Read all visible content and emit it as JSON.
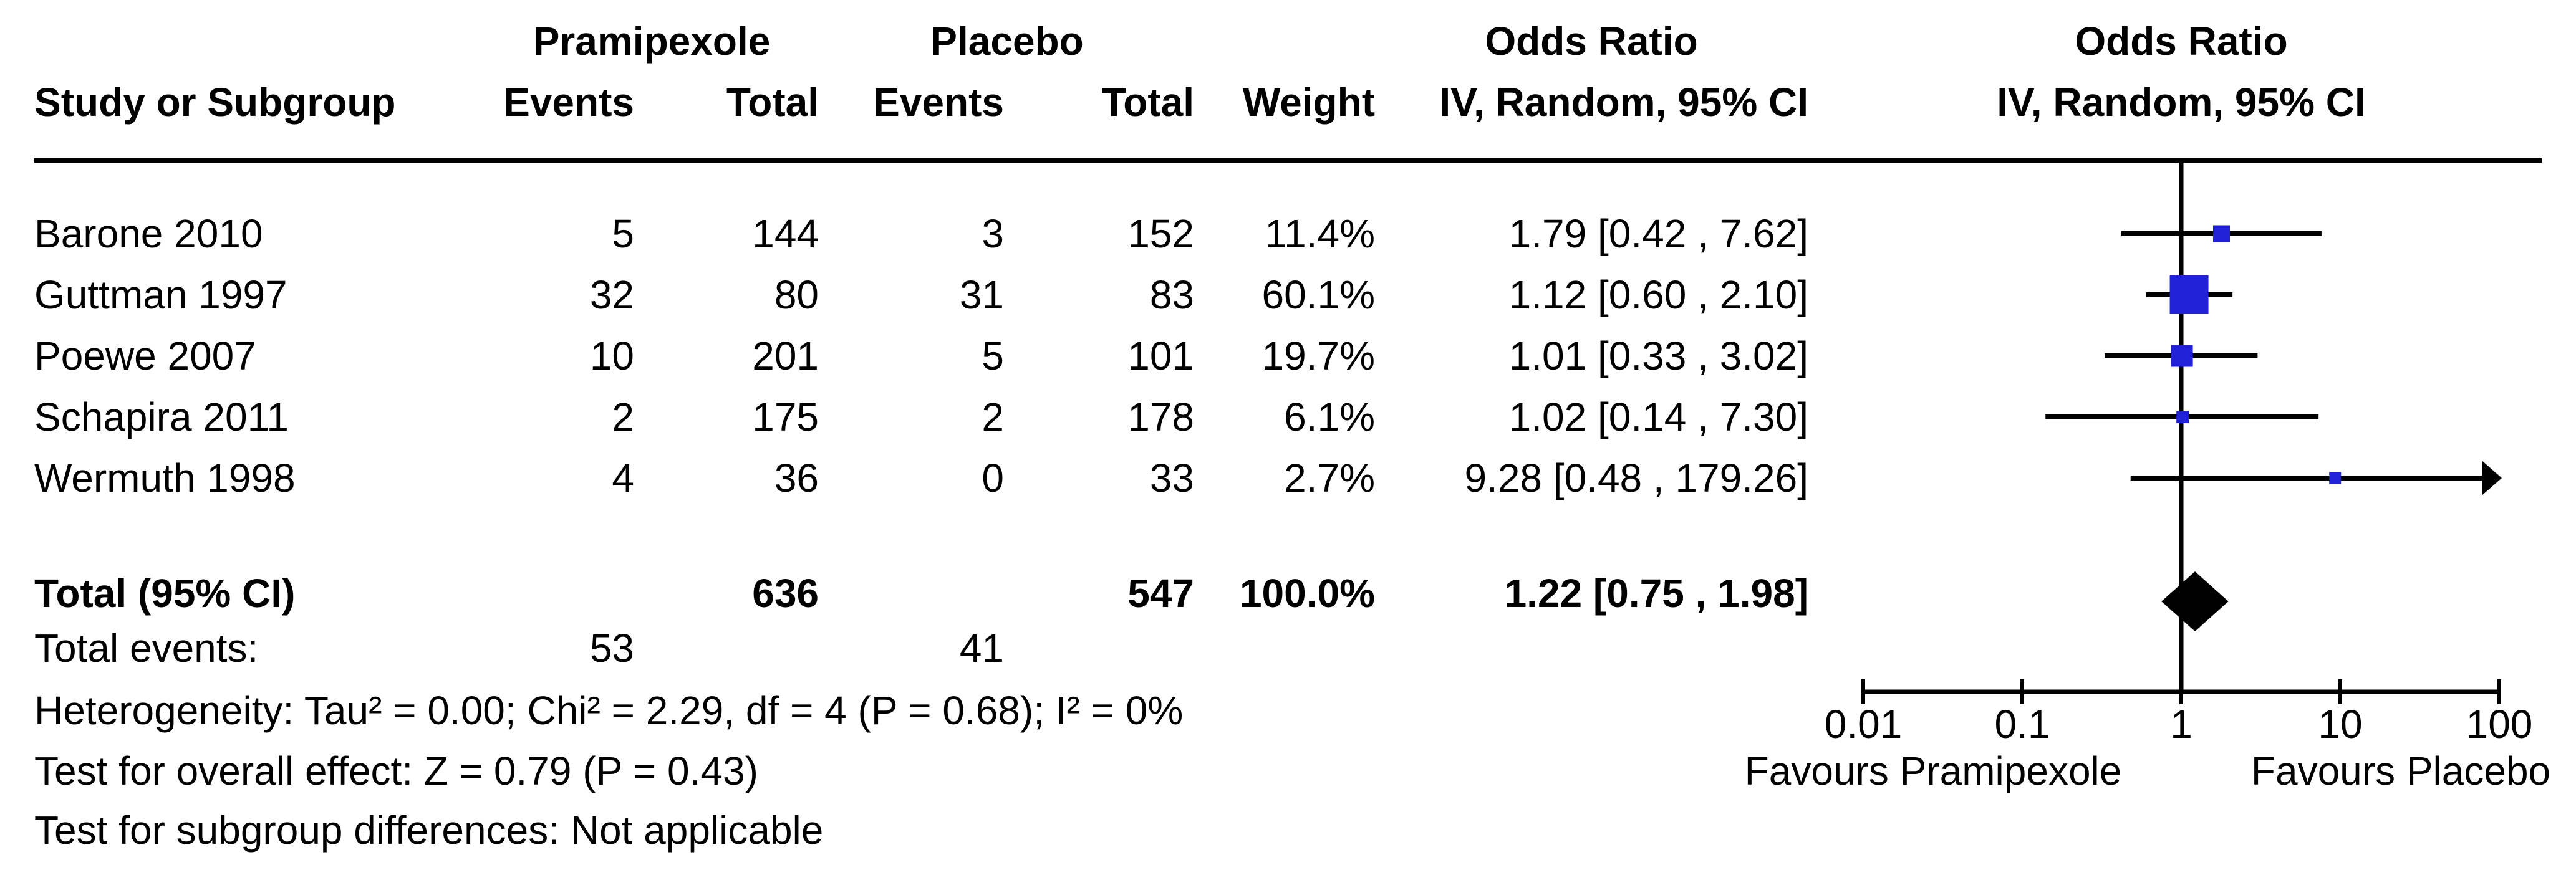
{
  "headers": {
    "group_treat": "Pramipexole",
    "group_ctrl": "Placebo",
    "group_or_text": "Odds Ratio",
    "group_or_plot": "Odds Ratio",
    "study": "Study or Subgroup",
    "events": "Events",
    "total": "Total",
    "weight": "Weight",
    "method_text": "IV, Random, 95% CI",
    "method_plot": "IV, Random, 95% CI"
  },
  "rows": [
    {
      "study": "Barone 2010",
      "e1": "5",
      "t1": "144",
      "e2": "3",
      "t2": "152",
      "weight": "11.4%",
      "ci": "1.79 [0.42 , 7.62]"
    },
    {
      "study": "Guttman 1997",
      "e1": "32",
      "t1": "80",
      "e2": "31",
      "t2": "83",
      "weight": "60.1%",
      "ci": "1.12 [0.60 , 2.10]"
    },
    {
      "study": "Poewe 2007",
      "e1": "10",
      "t1": "201",
      "e2": "5",
      "t2": "101",
      "weight": "19.7%",
      "ci": "1.01 [0.33 , 3.02]"
    },
    {
      "study": "Schapira 2011",
      "e1": "2",
      "t1": "175",
      "e2": "2",
      "t2": "178",
      "weight": "6.1%",
      "ci": "1.02 [0.14 , 7.30]"
    },
    {
      "study": "Wermuth 1998",
      "e1": "4",
      "t1": "36",
      "e2": "0",
      "t2": "33",
      "weight": "2.7%",
      "ci": "9.28 [0.48 , 179.26]"
    }
  ],
  "total_row": {
    "label": "Total (95% CI)",
    "t1": "636",
    "t2": "547",
    "weight": "100.0%",
    "ci": "1.22 [0.75 , 1.98]"
  },
  "footer": {
    "total_events_label": "Total events:",
    "total_events_treat": "53",
    "total_events_ctrl": "41",
    "heterogeneity": "Heterogeneity: Tau² = 0.00; Chi² = 2.29, df = 4 (P = 0.68); I² = 0%",
    "overall_effect": "Test for overall effect: Z = 0.79 (P = 0.43)",
    "subgroup_diff": "Test for subgroup differences: Not applicable"
  },
  "chart_data": {
    "type": "forest",
    "x_scale": "log10",
    "x_min": 0.01,
    "x_max": 100,
    "x_ticks": [
      0.01,
      0.1,
      1,
      10,
      100
    ],
    "x_tick_labels": [
      "0.01",
      "0.1",
      "1",
      "10",
      "100"
    ],
    "null_line": 1.0,
    "marker_color": "#2121d8",
    "summary_color": "#000000",
    "line_color": "#000000",
    "favours_left": "Favours Pramipexole",
    "favours_right": "Favours Placebo",
    "studies": [
      {
        "name": "Barone 2010",
        "events_treat": 5,
        "total_treat": 144,
        "events_ctrl": 3,
        "total_ctrl": 152,
        "weight_pct": 11.4,
        "or": 1.79,
        "ci_low": 0.42,
        "ci_high": 7.62
      },
      {
        "name": "Guttman 1997",
        "events_treat": 32,
        "total_treat": 80,
        "events_ctrl": 31,
        "total_ctrl": 83,
        "weight_pct": 60.1,
        "or": 1.12,
        "ci_low": 0.6,
        "ci_high": 2.1
      },
      {
        "name": "Poewe 2007",
        "events_treat": 10,
        "total_treat": 201,
        "events_ctrl": 5,
        "total_ctrl": 101,
        "weight_pct": 19.7,
        "or": 1.01,
        "ci_low": 0.33,
        "ci_high": 3.02
      },
      {
        "name": "Schapira 2011",
        "events_treat": 2,
        "total_treat": 175,
        "events_ctrl": 2,
        "total_ctrl": 178,
        "weight_pct": 6.1,
        "or": 1.02,
        "ci_low": 0.14,
        "ci_high": 7.3
      },
      {
        "name": "Wermuth 1998",
        "events_treat": 4,
        "total_treat": 36,
        "events_ctrl": 0,
        "total_ctrl": 33,
        "weight_pct": 2.7,
        "or": 9.28,
        "ci_low": 0.48,
        "ci_high": 179.26
      }
    ],
    "total": {
      "or": 1.22,
      "ci_low": 0.75,
      "ci_high": 1.98,
      "events_treat": 53,
      "events_ctrl": 41,
      "total_treat": 636,
      "total_ctrl": 547,
      "weight_pct": 100.0
    }
  }
}
